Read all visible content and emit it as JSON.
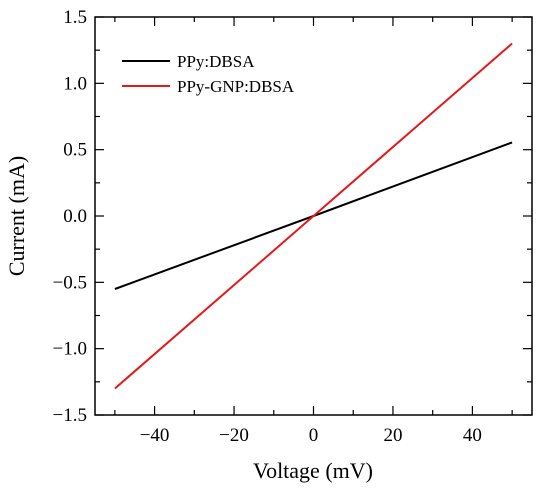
{
  "chart_data": {
    "type": "line",
    "title": "",
    "xlabel": "Voltage (mV)",
    "ylabel": "Current (mA)",
    "xlim": [
      -55,
      55
    ],
    "ylim": [
      -1.5,
      1.5
    ],
    "xticks": [
      -40,
      -20,
      0,
      20,
      40
    ],
    "xtick_labels": [
      "−40",
      "−20",
      "0",
      "20",
      "40"
    ],
    "yticks": [
      -1.5,
      -1.0,
      -0.5,
      0.0,
      0.5,
      1.0,
      1.5
    ],
    "ytick_labels": [
      "−1.5",
      "−1.0",
      "−0.5",
      "0.0",
      "0.5",
      "1.0",
      "1.5"
    ],
    "grid": false,
    "legend_position": "top-left",
    "series": [
      {
        "name": "PPy:DBSA",
        "color": "#000000",
        "x": [
          -50,
          0,
          50
        ],
        "y": [
          -0.55,
          0.0,
          0.555
        ]
      },
      {
        "name": "PPy-GNP:DBSA",
        "color": "#e31a1c",
        "x": [
          -50,
          0,
          50
        ],
        "y": [
          -1.3,
          0.0,
          1.3
        ]
      }
    ]
  }
}
